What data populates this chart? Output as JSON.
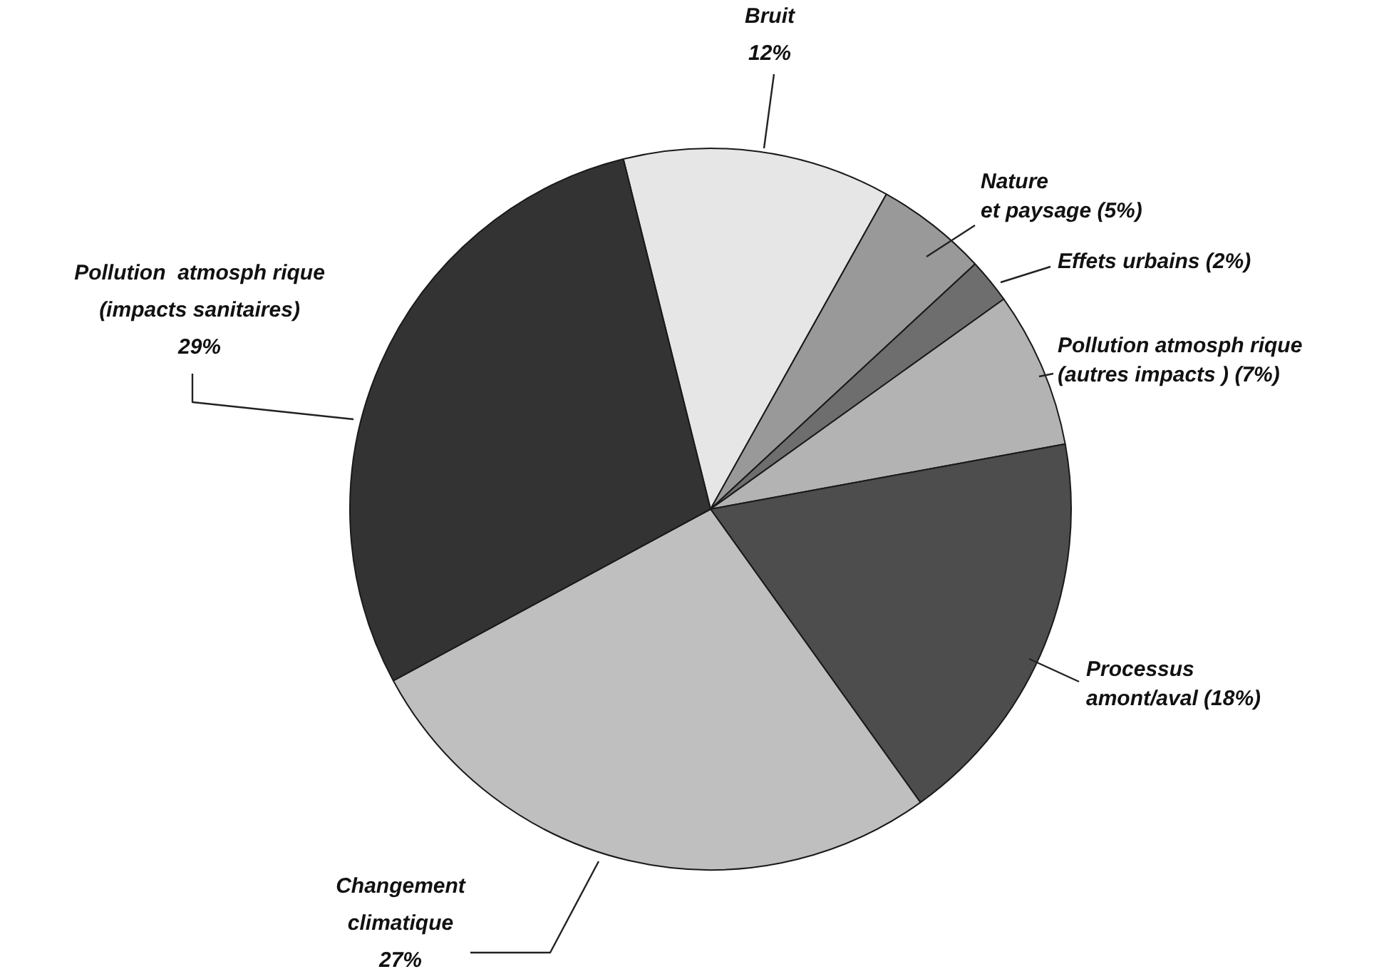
{
  "chart_data": {
    "type": "pie",
    "categories": [
      "Bruit",
      "Nature\net paysage",
      "Effets urbains",
      "Pollution atmosph rique\n(autres impacts )",
      "Processus\namont/aval",
      "Changement\nclimatique",
      "Pollution  atmosph rique\n(impacts sanitaires)"
    ],
    "values": [
      12,
      5,
      2,
      7,
      18,
      27,
      29
    ],
    "value_labels": [
      "12%",
      "(5%)",
      "(2%)",
      "(7%)",
      "(18%)",
      "27%",
      "29%"
    ],
    "colors": [
      "#e6e6e6",
      "#999999",
      "#6e6e6e",
      "#b3b3b3",
      "#4d4d4d",
      "#bfbfbf",
      "#333333"
    ],
    "legend": false
  }
}
